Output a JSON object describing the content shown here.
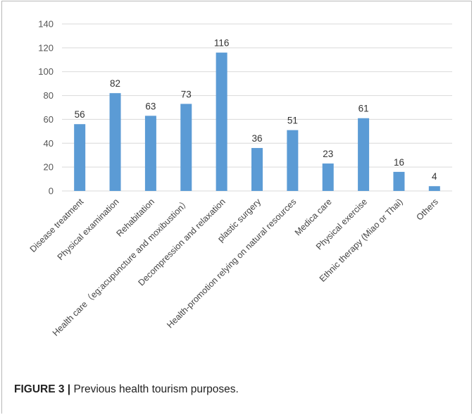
{
  "caption": {
    "label": "FIGURE 3 |",
    "text": " Previous health tourism purposes."
  },
  "chart_data": {
    "type": "bar",
    "categories": [
      "Disease treatment",
      "Physical examination",
      "Rehabitation",
      "Health care（eg:acupuncture and moxibustion）",
      "Decompression and relaxation",
      "plastic surgery",
      "Health-promotion relying on natural resources",
      "Medica care",
      "Physical exercise",
      "Ethnic therapy (Miao or Thai)",
      "Others"
    ],
    "values": [
      56,
      82,
      63,
      73,
      116,
      36,
      51,
      23,
      61,
      16,
      4
    ],
    "ylim": [
      0,
      140
    ],
    "yticks": [
      0,
      20,
      40,
      60,
      80,
      100,
      120,
      140
    ],
    "grid": true,
    "bar_color": "#5b9bd5",
    "data_labels": true,
    "title": "",
    "xlabel": "",
    "ylabel": ""
  }
}
